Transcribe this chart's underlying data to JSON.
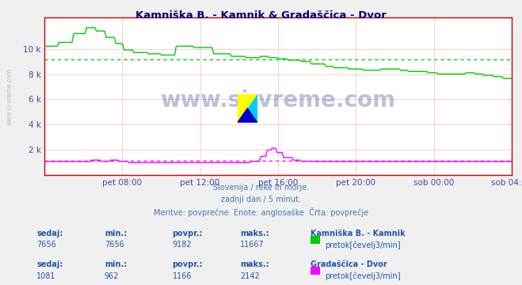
{
  "title": "Kamniška B. - Kamnik & Gradaščica - Dvor",
  "bg_color": "#f0f0f0",
  "plot_bg_color": "#ffffff",
  "title_color": "#000080",
  "watermark_text": "www.si-vreme.com",
  "watermark_color": "#1a3a8a",
  "watermark_alpha": 0.3,
  "subtitle_lines": [
    "Slovenija / reke in morje.",
    "zadnji dan / 5 minut.",
    "Meritve: povprečne  Enote: anglosaške  Črta: povprečje"
  ],
  "subtitle_color": "#4477aa",
  "tick_color": "#4444aa",
  "line1_color": "#00cc00",
  "line2_color": "#ff00ff",
  "avg1": 9182,
  "avg2": 1166,
  "ylim": [
    0,
    12500
  ],
  "yticks": [
    2000,
    4000,
    6000,
    8000,
    10000
  ],
  "ytick_labels": [
    "2 k",
    "4 k",
    "6 k",
    "8 k",
    "10 k"
  ],
  "kamnik_sedaj": 7656,
  "kamnik_min": 7656,
  "kamnik_avg": 9182,
  "kamnik_max": 11667,
  "dvor_sedaj": 1081,
  "dvor_min": 962,
  "dvor_avg": 1166,
  "dvor_max": 2142,
  "xtick_labels": [
    "pet 08:00",
    "pet 12:00",
    "pet 16:00",
    "pet 20:00",
    "sob 00:00",
    "sob 04:00"
  ],
  "grid_h_color": "#ffcccc",
  "grid_v_color": "#ffcccc",
  "spine_color": "#cc0000",
  "logo_colors": [
    "#ffff00",
    "#00ccff",
    "#0000cc"
  ]
}
